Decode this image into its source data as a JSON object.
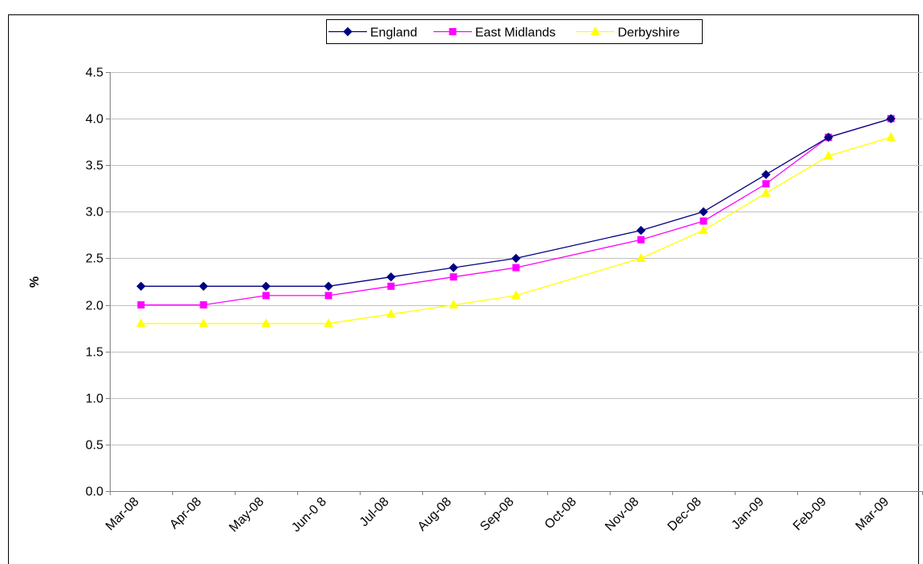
{
  "chart_data": {
    "type": "line",
    "title": "",
    "xlabel": "",
    "ylabel": "%",
    "ylim": [
      0,
      4.5
    ],
    "yticks": [
      "0.0",
      "0.5",
      "1.0",
      "1.5",
      "2.0",
      "2.5",
      "3.0",
      "3.5",
      "4.0",
      "4.5"
    ],
    "grid": true,
    "legend": "top-center",
    "categories": [
      "Mar-08",
      "Apr-08",
      "May-08",
      "Jun-0 8",
      "Jul-08",
      "Aug-08",
      "Sep-08",
      "Oct-08",
      "Nov-08",
      "Dec-08",
      "Jan-09",
      "Feb-09",
      "Mar-09"
    ],
    "series": [
      {
        "name": "England",
        "color": "#000080",
        "marker": "diamond",
        "values": [
          2.2,
          2.2,
          2.2,
          2.2,
          2.3,
          2.4,
          2.5,
          null,
          2.8,
          3.0,
          3.4,
          3.8,
          4.0
        ]
      },
      {
        "name": "East Midlands",
        "color": "#ff00ff",
        "marker": "square",
        "values": [
          2.0,
          2.0,
          2.1,
          2.1,
          2.2,
          2.3,
          2.4,
          null,
          2.7,
          2.9,
          3.3,
          3.8,
          4.0
        ]
      },
      {
        "name": "Derbyshire",
        "color": "#ffff00",
        "marker": "triangle",
        "values": [
          1.8,
          1.8,
          1.8,
          1.8,
          1.9,
          2.0,
          2.1,
          null,
          2.5,
          2.8,
          3.2,
          3.6,
          3.8
        ]
      }
    ]
  }
}
